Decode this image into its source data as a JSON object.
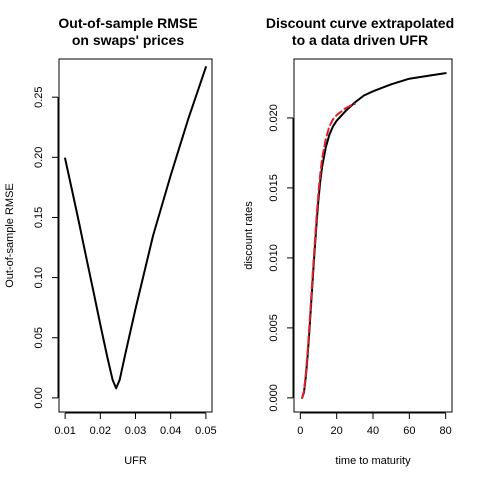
{
  "chart_data": [
    {
      "type": "line",
      "title": [
        "Out-of-sample RMSE",
        "on swaps' prices"
      ],
      "xlabel": "UFR",
      "ylabel": "Out-of-sample RMSE",
      "xlim": [
        0.01,
        0.05
      ],
      "ylim": [
        0.0,
        0.27
      ],
      "xticks": [
        0.01,
        0.02,
        0.03,
        0.04,
        0.05
      ],
      "xtick_labels": [
        "0.01",
        "0.02",
        "0.03",
        "0.04",
        "0.05"
      ],
      "yticks": [
        0.0,
        0.05,
        0.1,
        0.15,
        0.2,
        0.25
      ],
      "ytick_labels": [
        "0.00",
        "0.05",
        "0.10",
        "0.15",
        "0.20",
        "0.25"
      ],
      "grid": false,
      "series": [
        {
          "color": "#000000",
          "dash": "solid",
          "x": [
            0.01,
            0.012,
            0.014,
            0.016,
            0.018,
            0.02,
            0.022,
            0.0235,
            0.0245,
            0.0255,
            0.027,
            0.03,
            0.035,
            0.04,
            0.045,
            0.05
          ],
          "y": [
            0.199,
            0.172,
            0.145,
            0.117,
            0.089,
            0.061,
            0.034,
            0.015,
            0.008,
            0.015,
            0.035,
            0.074,
            0.135,
            0.185,
            0.232,
            0.275
          ]
        }
      ]
    },
    {
      "type": "line",
      "title": [
        "Discount curve extrapolated",
        "to a data driven UFR"
      ],
      "xlabel": "time to maturity",
      "ylabel": "discount rates",
      "xlim": [
        0,
        80
      ],
      "ylim": [
        0.0,
        0.0232
      ],
      "xticks": [
        0,
        20,
        40,
        60,
        80
      ],
      "xtick_labels": [
        "0",
        "20",
        "40",
        "60",
        "80"
      ],
      "yticks": [
        0.0,
        0.005,
        0.01,
        0.015,
        0.02
      ],
      "ytick_labels": [
        "0.000",
        "0.005",
        "0.010",
        "0.015",
        "0.020"
      ],
      "grid": false,
      "series": [
        {
          "color": "#000000",
          "dash": "solid",
          "x": [
            1,
            2,
            3,
            4,
            5,
            6,
            7,
            8,
            9,
            10,
            11,
            12,
            14,
            16,
            18,
            20,
            25,
            30,
            35,
            40,
            50,
            60,
            70,
            80
          ],
          "y": [
            0.0,
            0.0004,
            0.0015,
            0.003,
            0.0048,
            0.0068,
            0.0088,
            0.0108,
            0.0126,
            0.0142,
            0.0155,
            0.0165,
            0.0179,
            0.0188,
            0.0194,
            0.0198,
            0.0205,
            0.0211,
            0.0216,
            0.0219,
            0.0224,
            0.0228,
            0.023,
            0.0232
          ]
        },
        {
          "color": "#e0202a",
          "dash": "dashed",
          "x": [
            1,
            2,
            3,
            4,
            5,
            6,
            7,
            8,
            9,
            10,
            11,
            12,
            14,
            16,
            18,
            20,
            22,
            25,
            28,
            30
          ],
          "y": [
            0.0,
            0.0005,
            0.0017,
            0.0033,
            0.0052,
            0.0072,
            0.0092,
            0.0112,
            0.0131,
            0.0147,
            0.016,
            0.0171,
            0.0185,
            0.0194,
            0.0199,
            0.0202,
            0.0204,
            0.0207,
            0.0209,
            0.021
          ]
        }
      ]
    }
  ]
}
